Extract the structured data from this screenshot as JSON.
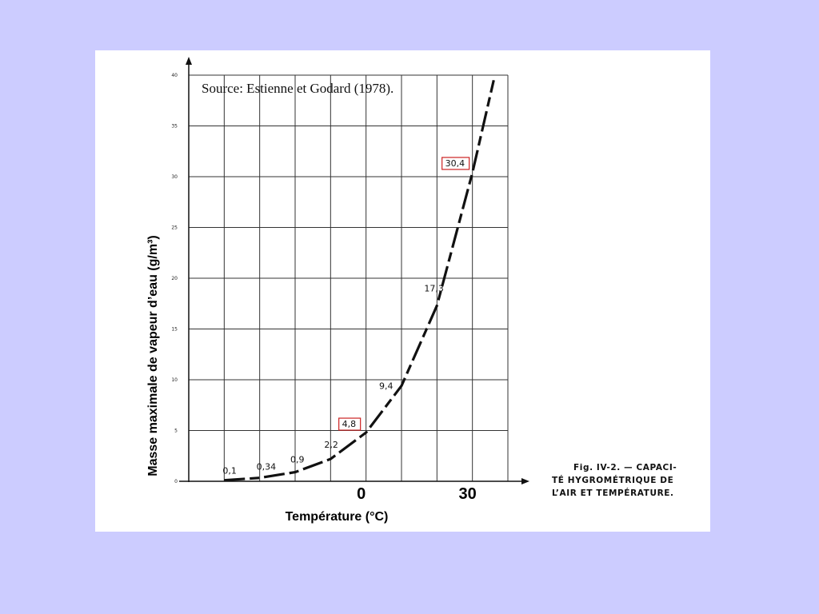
{
  "colors": {
    "page_background": "#ccccff",
    "card_background": "#ffffff",
    "curve": "#111111",
    "highlight_box": "#cc2222"
  },
  "source": "Source: Estienne et Godard (1978).",
  "caption_lines": [
    "Fig. IV-2. — CAPACI-",
    "TÉ HYGROMÉTRIQUE DE",
    "L’AIR ET TEMPÉRATURE."
  ],
  "chart_data": {
    "type": "line",
    "title": "",
    "xlabel": "Température (°C)",
    "ylabel": "Masse maximale de vapeur d’eau (g/m³)",
    "xlim": [
      -50,
      40
    ],
    "ylim": [
      0,
      40
    ],
    "grid": true,
    "y_ticks": [
      "0",
      "5",
      "10",
      "15",
      "20",
      "25",
      "30",
      "35",
      "40"
    ],
    "x_ticks": [
      "0",
      "30"
    ],
    "series": [
      {
        "x": [
          -40,
          -30,
          -20,
          -10,
          0,
          10,
          20,
          30,
          36
        ],
        "y": [
          0.1,
          0.34,
          0.9,
          2.2,
          4.8,
          9.4,
          17.3,
          30.4,
          39.5
        ]
      }
    ],
    "point_labels": [
      {
        "x": -40,
        "y": 0.1,
        "text": "0,1",
        "highlighted": false
      },
      {
        "x": -30,
        "y": 0.34,
        "text": "0,34",
        "highlighted": false
      },
      {
        "x": -20,
        "y": 0.9,
        "text": "0,9",
        "highlighted": false
      },
      {
        "x": -10,
        "y": 2.2,
        "text": "2,2",
        "highlighted": false
      },
      {
        "x": 0,
        "y": 4.8,
        "text": "4,8",
        "highlighted": true
      },
      {
        "x": 10,
        "y": 9.4,
        "text": "9,4",
        "highlighted": false
      },
      {
        "x": 20,
        "y": 17.3,
        "text": "17,3",
        "highlighted": false
      },
      {
        "x": 30,
        "y": 30.4,
        "text": "30,4",
        "highlighted": true
      }
    ]
  }
}
